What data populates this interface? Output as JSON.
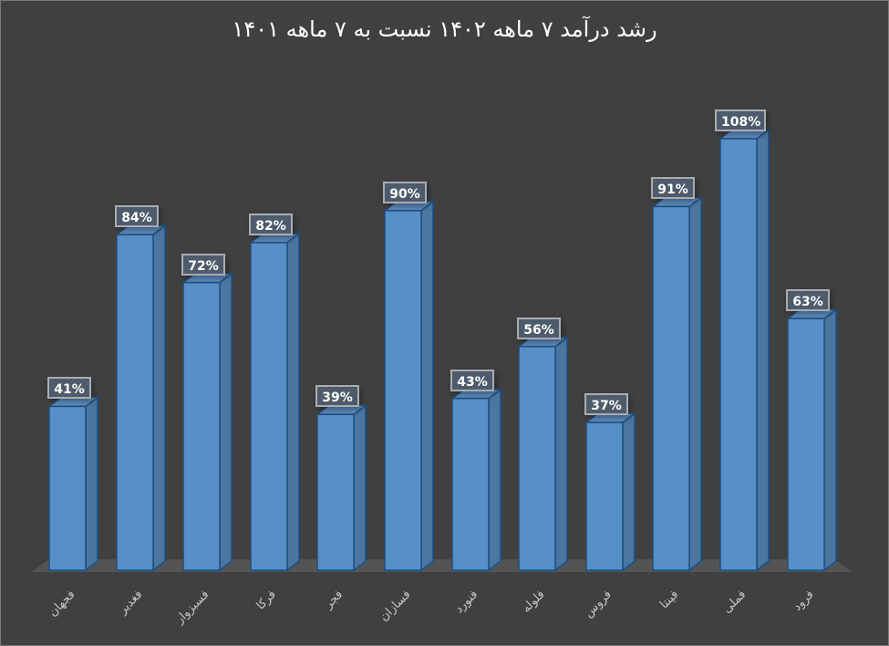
{
  "chart_data": {
    "type": "bar",
    "style": "3d-column",
    "title": "رشد درآمد ۷ ماهه ۱۴۰۲ نسبت به ۷ ماهه ۱۴۰۱",
    "xlabel": "",
    "ylabel": "",
    "categories": [
      "فجهان",
      "فغدیر",
      "فسبزوار",
      "فرکا",
      "فجر",
      "فسازان",
      "فنورد",
      "فلوله",
      "فروس",
      "فپنتا",
      "فملی",
      "فرود"
    ],
    "values": [
      41,
      84,
      72,
      82,
      39,
      90,
      43,
      56,
      37,
      91,
      108,
      63
    ],
    "value_labels": [
      "41%",
      "84%",
      "72%",
      "82%",
      "39%",
      "90%",
      "43%",
      "56%",
      "37%",
      "91%",
      "108%",
      "63%"
    ],
    "unit": "%",
    "ylim": [
      0,
      110
    ],
    "grid": false,
    "legend": null,
    "y_axis_visible": false
  },
  "colors": {
    "background": "#404040",
    "bar_front": "#5690c6",
    "bar_side": "#4a76a0",
    "bar_top": "#5b8cc0",
    "bar_edge": "#1f4e7e",
    "floor": "#545454",
    "title": "#ffffff",
    "axis_label": "#c8c8c8"
  }
}
